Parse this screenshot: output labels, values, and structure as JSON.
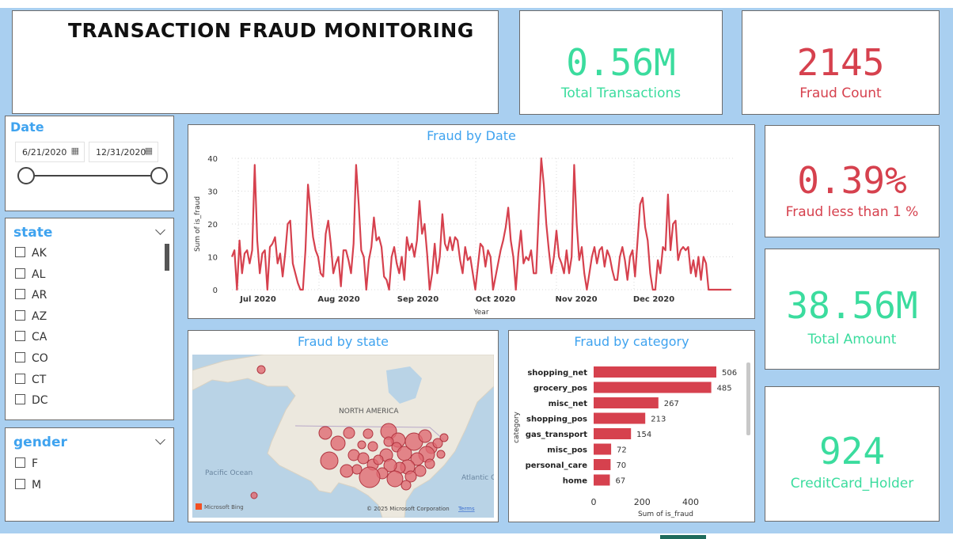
{
  "title": "TRANSACTION FRAUD MONITORING",
  "kpis": {
    "total_transactions": {
      "value": "0.56M",
      "label": "Total Transactions"
    },
    "fraud_count": {
      "value": "2145",
      "label": "Fraud Count"
    },
    "fraud_rate": {
      "value": "0.39%",
      "label": "Fraud less than 1 %"
    },
    "total_amount": {
      "value": "38.56M",
      "label": "Total Amount"
    },
    "cardholders": {
      "value": "924",
      "label": "CreditCard_Holder"
    }
  },
  "date_slicer": {
    "title": "Date",
    "start": "6/21/2020",
    "end": "12/31/2020"
  },
  "state_slicer": {
    "title": "state",
    "items": [
      "AK",
      "AL",
      "AR",
      "AZ",
      "CA",
      "CO",
      "CT",
      "DC"
    ]
  },
  "gender_slicer": {
    "title": "gender",
    "items": [
      "F",
      "M"
    ]
  },
  "map": {
    "title": "Fraud by state",
    "labels": {
      "continent": "NORTH AMERICA",
      "pacific": "Pacific Ocean",
      "atlantic": "Atlantic C",
      "bing": "Microsoft Bing",
      "copyright": "© 2025 Microsoft Corporation",
      "terms": "Terms"
    }
  },
  "colors": {
    "accent_red": "#d6414e",
    "accent_green": "#3bdc9e",
    "title_blue": "#3fa3ef",
    "background": "#a9cff0"
  },
  "chart_data": [
    {
      "type": "line",
      "title": "Fraud by Date",
      "xlabel": "Year",
      "ylabel": "Sum of is_fraud",
      "ylim": [
        0,
        40
      ],
      "yticks": [
        0,
        10,
        20,
        30,
        40
      ],
      "xticks": [
        "Jul 2020",
        "Aug 2020",
        "Sep 2020",
        "Oct 2020",
        "Nov 2020",
        "Dec 2020"
      ],
      "grid": true,
      "series": [
        {
          "values": [
            10,
            12,
            0,
            15,
            5,
            11,
            12,
            8,
            12,
            38,
            15,
            5,
            11,
            12,
            0,
            13,
            14,
            16,
            8,
            11,
            4,
            11,
            20,
            21,
            8,
            5,
            2,
            0,
            0,
            12,
            32,
            24,
            16,
            12,
            10,
            5,
            4,
            17,
            21,
            14,
            5,
            8,
            10,
            1,
            12,
            12,
            9,
            5,
            14,
            38,
            26,
            12,
            10,
            0,
            9,
            13,
            22,
            15,
            16,
            13,
            4,
            3,
            0,
            10,
            13,
            8,
            5,
            10,
            3,
            16,
            12,
            14,
            10,
            15,
            27,
            17,
            20,
            11,
            0,
            5,
            14,
            5,
            10,
            23,
            14,
            12,
            16,
            12,
            16,
            15,
            9,
            5,
            13,
            9,
            10,
            5,
            0,
            7,
            14,
            13,
            7,
            12,
            10,
            0,
            4,
            8,
            12,
            15,
            19,
            25,
            15,
            10,
            0,
            11,
            18,
            8,
            10,
            9,
            12,
            5,
            5,
            23,
            40,
            32,
            20,
            12,
            5,
            10,
            18,
            10,
            8,
            5,
            12,
            5,
            10,
            38,
            20,
            9,
            13,
            5,
            0,
            5,
            10,
            13,
            8,
            12,
            13,
            7,
            12,
            10,
            6,
            3,
            3,
            10,
            13,
            9,
            3,
            10,
            12,
            4,
            15,
            26,
            28,
            19,
            15,
            5,
            0,
            0,
            9,
            5,
            13,
            12,
            29,
            12,
            20,
            21,
            9,
            12,
            13,
            12,
            13,
            5,
            9,
            4,
            10,
            3,
            10,
            8,
            0,
            0,
            0,
            0,
            0,
            0,
            0,
            0,
            0,
            0
          ]
        }
      ]
    },
    {
      "type": "bar",
      "title": "Fraud by category",
      "xlabel": "Sum of is_fraud",
      "ylabel": "category",
      "xlim": [
        0,
        506
      ],
      "xticks": [
        0,
        200,
        400
      ],
      "categories": [
        "shopping_net",
        "grocery_pos",
        "misc_net",
        "shopping_pos",
        "gas_transport",
        "misc_pos",
        "personal_care",
        "home"
      ],
      "values": [
        506,
        485,
        267,
        213,
        154,
        72,
        70,
        67
      ]
    }
  ]
}
